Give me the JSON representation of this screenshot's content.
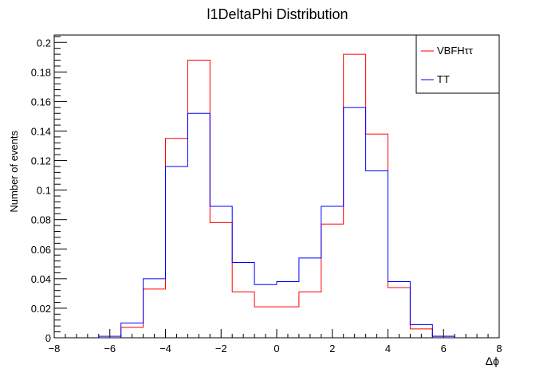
{
  "chart_data": {
    "type": "histogram",
    "title": "l1DeltaPhi Distribution",
    "xlabel": "Δϕ",
    "ylabel": "Number of events",
    "xlim": [
      -8,
      8
    ],
    "ylim": [
      0,
      0.205
    ],
    "x_ticks": [
      -8,
      -6,
      -4,
      -2,
      0,
      2,
      4,
      6,
      8
    ],
    "x_tick_labels": [
      "−8",
      "−6",
      "−4",
      "−2",
      "0",
      "2",
      "4",
      "6",
      "8"
    ],
    "y_ticks": [
      0,
      0.02,
      0.04,
      0.06,
      0.08,
      0.1,
      0.12,
      0.14,
      0.16,
      0.18,
      0.2
    ],
    "y_tick_labels": [
      "0",
      "0.02",
      "0.04",
      "0.06",
      "0.08",
      "0.1",
      "0.12",
      "0.14",
      "0.16",
      "0.18",
      "0.2"
    ],
    "bin_edges": [
      -8.0,
      -7.2,
      -6.4,
      -5.6,
      -4.8,
      -4.0,
      -3.2,
      -2.4,
      -1.6,
      -0.8,
      0.0,
      0.8,
      1.6,
      2.4,
      3.2,
      4.0,
      4.8,
      5.6,
      6.4,
      7.2,
      8.0
    ],
    "series": [
      {
        "name": "VBFHττ",
        "color": "#ff0000",
        "values": [
          0,
          0,
          0,
          0.007,
          0.033,
          0.135,
          0.188,
          0.078,
          0.031,
          0.021,
          0.021,
          0.031,
          0.077,
          0.192,
          0.138,
          0.034,
          0.006,
          0.001,
          0,
          0
        ]
      },
      {
        "name": "TT",
        "color": "#0000ff",
        "values": [
          0,
          0,
          0.001,
          0.01,
          0.04,
          0.116,
          0.152,
          0.089,
          0.051,
          0.036,
          0.038,
          0.054,
          0.089,
          0.156,
          0.113,
          0.038,
          0.009,
          0.001,
          0,
          0
        ]
      }
    ],
    "legend": {
      "position": "top-right",
      "entries": [
        "VBFHττ",
        "TT"
      ]
    }
  }
}
